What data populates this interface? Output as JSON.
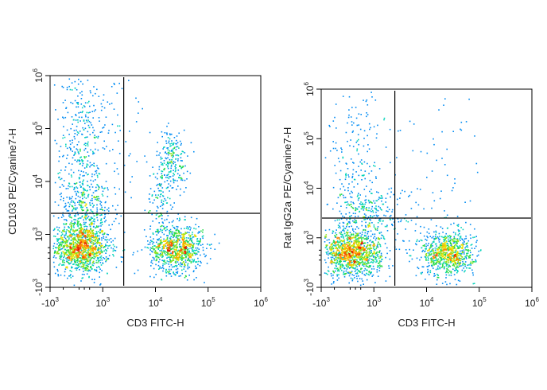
{
  "chart_data": [
    {
      "type": "scatter",
      "subtype": "flow-cytometry-pseudocolor",
      "title": "",
      "xlabel": "CD3 FITC-H",
      "ylabel": "CD103 PE/Cyanine7-H",
      "x_scale": "biexponential",
      "y_scale": "biexponential",
      "xlim": [
        -1000,
        1000000
      ],
      "ylim": [
        -1000,
        1000000
      ],
      "x_ticks": [
        {
          "base": "-10",
          "exp": "3",
          "value": -1000
        },
        {
          "base": "10",
          "exp": "3",
          "value": 1000
        },
        {
          "base": "10",
          "exp": "4",
          "value": 10000
        },
        {
          "base": "10",
          "exp": "5",
          "value": 100000
        },
        {
          "base": "10",
          "exp": "6",
          "value": 1000000
        }
      ],
      "y_ticks": [
        {
          "base": "-10",
          "exp": "3",
          "value": -1000
        },
        {
          "base": "10",
          "exp": "3",
          "value": 1000
        },
        {
          "base": "10",
          "exp": "4",
          "value": 10000
        },
        {
          "base": "10",
          "exp": "5",
          "value": 100000
        },
        {
          "base": "10",
          "exp": "6",
          "value": 1000000
        }
      ],
      "gates": {
        "x": 2500,
        "y": 2500
      },
      "populations": [
        {
          "cx": 150,
          "cy": 500,
          "weight": 1100,
          "spread_x": 0.55,
          "spread_y": 0.45
        },
        {
          "cx": 25000,
          "cy": 500,
          "weight": 850,
          "spread_x": 0.5,
          "spread_y": 0.45
        },
        {
          "cx": 20000,
          "cy": 25000,
          "weight": 220,
          "spread_x": 0.3,
          "spread_y": 0.6
        },
        {
          "cx": 12000,
          "cy": 4000,
          "weight": 90,
          "spread_x": 0.25,
          "spread_y": 0.7
        },
        {
          "cx": 200,
          "cy": 20000,
          "weight": 650,
          "spread_x": 0.6,
          "spread_y": 2.6
        },
        {
          "cx": 300,
          "cy": 2500,
          "weight": 220,
          "spread_x": 0.5,
          "spread_y": 0.6
        },
        {
          "cx": 2000,
          "cy": 20000,
          "weight": 50,
          "spread_x": 0.8,
          "spread_y": 2.2
        }
      ]
    },
    {
      "type": "scatter",
      "subtype": "flow-cytometry-pseudocolor",
      "title": "",
      "xlabel": "CD3 FITC-H",
      "ylabel": "Rat IgG2a PE/Cyanine7-H",
      "x_scale": "biexponential",
      "y_scale": "biexponential",
      "xlim": [
        -1000,
        1000000
      ],
      "ylim": [
        -1000,
        1000000
      ],
      "x_ticks": [
        {
          "base": "-10",
          "exp": "3",
          "value": -1000
        },
        {
          "base": "10",
          "exp": "3",
          "value": 1000
        },
        {
          "base": "10",
          "exp": "4",
          "value": 10000
        },
        {
          "base": "10",
          "exp": "5",
          "value": 100000
        },
        {
          "base": "10",
          "exp": "6",
          "value": 1000000
        }
      ],
      "y_ticks": [
        {
          "base": "-10",
          "exp": "3",
          "value": -1000
        },
        {
          "base": "10",
          "exp": "3",
          "value": 1000
        },
        {
          "base": "10",
          "exp": "4",
          "value": 10000
        },
        {
          "base": "10",
          "exp": "5",
          "value": 100000
        },
        {
          "base": "10",
          "exp": "6",
          "value": 1000000
        }
      ],
      "gates": {
        "x": 2500,
        "y": 2500
      },
      "populations": [
        {
          "cx": 150,
          "cy": 400,
          "weight": 1100,
          "spread_x": 0.55,
          "spread_y": 0.45
        },
        {
          "cx": 25000,
          "cy": 400,
          "weight": 800,
          "spread_x": 0.5,
          "spread_y": 0.45
        },
        {
          "cx": 200,
          "cy": 20000,
          "weight": 330,
          "spread_x": 0.6,
          "spread_y": 2.4
        },
        {
          "cx": 900,
          "cy": 3000,
          "weight": 230,
          "spread_x": 0.8,
          "spread_y": 0.6
        },
        {
          "cx": 20000,
          "cy": 15000,
          "weight": 60,
          "spread_x": 0.7,
          "spread_y": 2.0
        }
      ]
    }
  ]
}
